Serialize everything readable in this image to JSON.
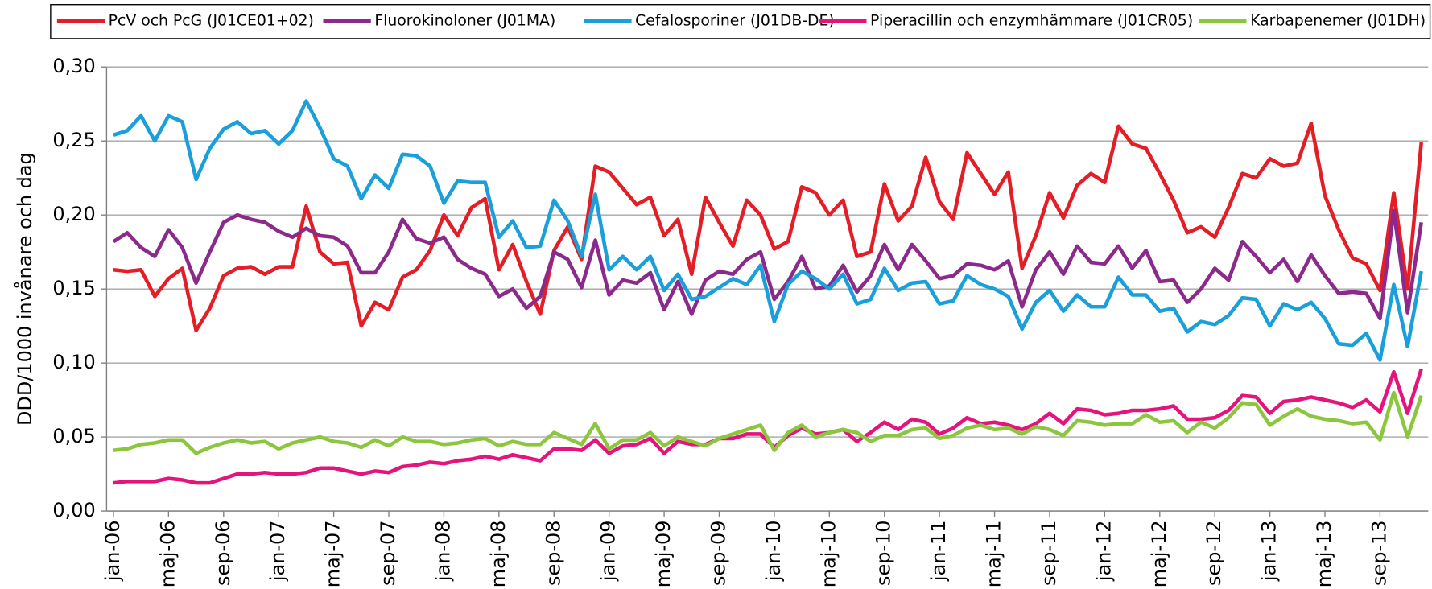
{
  "chart_data": {
    "type": "line",
    "y_label": "DDD/1000 invånare och dag",
    "ylim": [
      0,
      0.3
    ],
    "yticks": [
      {
        "value": 0,
        "label": "0,00"
      },
      {
        "value": 0.05,
        "label": "0,05"
      },
      {
        "value": 0.1,
        "label": "0,10"
      },
      {
        "value": 0.15,
        "label": "0,15"
      },
      {
        "value": 0.2,
        "label": "0,20"
      },
      {
        "value": 0.25,
        "label": "0,25"
      },
      {
        "value": 0.3,
        "label": "0,30"
      }
    ],
    "grid": true,
    "legend": "top",
    "categories": [
      "jan-06",
      null,
      null,
      null,
      "maj-06",
      null,
      null,
      null,
      "sep-06",
      null,
      null,
      null,
      "jan-07",
      null,
      null,
      null,
      "maj-07",
      null,
      null,
      null,
      "sep-07",
      null,
      null,
      null,
      "jan-08",
      null,
      null,
      null,
      "maj-08",
      null,
      null,
      null,
      "sep-08",
      null,
      null,
      null,
      "jan-09",
      null,
      null,
      null,
      "maj-09",
      null,
      null,
      null,
      "sep-09",
      null,
      null,
      null,
      "jan-10",
      null,
      null,
      null,
      "maj-10",
      null,
      null,
      null,
      "sep-10",
      null,
      null,
      null,
      "jan-11",
      null,
      null,
      null,
      "maj-11",
      null,
      null,
      null,
      "sep-11",
      null,
      null,
      null,
      "jan-12",
      null,
      null,
      null,
      "maj-12",
      null,
      null,
      null,
      "sep-12",
      null,
      null,
      null,
      "jan-13",
      null,
      null,
      null,
      "maj-13",
      null,
      null,
      null,
      "sep-13",
      null,
      null,
      null
    ],
    "series": [
      {
        "name": "PcV och PcG (J01CE01+02)",
        "color": "#e41e26",
        "values": [
          0.163,
          0.162,
          0.163,
          0.145,
          0.157,
          0.164,
          0.122,
          0.137,
          0.159,
          0.164,
          0.165,
          0.16,
          0.165,
          0.165,
          0.206,
          0.175,
          0.167,
          0.168,
          0.125,
          0.141,
          0.136,
          0.158,
          0.163,
          0.176,
          0.2,
          0.186,
          0.205,
          0.211,
          0.163,
          0.18,
          0.155,
          0.133,
          0.176,
          0.192,
          0.17,
          0.233,
          0.229,
          0.218,
          0.207,
          0.212,
          0.186,
          0.197,
          0.16,
          0.212,
          0.195,
          0.179,
          0.21,
          0.2,
          0.177,
          0.182,
          0.219,
          0.215,
          0.2,
          0.21,
          0.172,
          0.175,
          0.221,
          0.196,
          0.206,
          0.239,
          0.209,
          0.197,
          0.242,
          0.228,
          0.214,
          0.229,
          0.164,
          0.186,
          0.215,
          0.198,
          0.22,
          0.228,
          0.222,
          0.26,
          0.248,
          0.245,
          0.228,
          0.21,
          0.188,
          0.192,
          0.185,
          0.205,
          0.228,
          0.225,
          0.238,
          0.233,
          0.235,
          0.262,
          0.213,
          0.19,
          0.171,
          0.167,
          0.149,
          0.215,
          0.15,
          0.249
        ]
      },
      {
        "name": "Fluorokinoloner (J01MA)",
        "color": "#8b2a8b",
        "values": [
          0.182,
          0.188,
          0.178,
          0.172,
          0.19,
          0.178,
          0.154,
          0.175,
          0.195,
          0.2,
          0.197,
          0.195,
          0.189,
          0.185,
          0.191,
          0.186,
          0.185,
          0.179,
          0.161,
          0.161,
          0.175,
          0.197,
          0.184,
          0.181,
          0.185,
          0.17,
          0.164,
          0.16,
          0.145,
          0.15,
          0.137,
          0.145,
          0.175,
          0.17,
          0.151,
          0.183,
          0.146,
          0.156,
          0.154,
          0.161,
          0.136,
          0.155,
          0.133,
          0.156,
          0.162,
          0.16,
          0.17,
          0.175,
          0.143,
          0.155,
          0.172,
          0.15,
          0.152,
          0.166,
          0.148,
          0.159,
          0.18,
          0.163,
          0.18,
          0.169,
          0.157,
          0.159,
          0.167,
          0.166,
          0.163,
          0.169,
          0.138,
          0.163,
          0.175,
          0.16,
          0.179,
          0.168,
          0.167,
          0.179,
          0.164,
          0.176,
          0.155,
          0.156,
          0.141,
          0.15,
          0.164,
          0.156,
          0.182,
          0.172,
          0.161,
          0.17,
          0.155,
          0.173,
          0.159,
          0.147,
          0.148,
          0.147,
          0.13,
          0.203,
          0.134,
          0.195
        ]
      },
      {
        "name": "Cefalosporiner (J01DB-DE)",
        "color": "#1a9fdb",
        "values": [
          0.254,
          0.257,
          0.267,
          0.25,
          0.267,
          0.263,
          0.224,
          0.245,
          0.258,
          0.263,
          0.255,
          0.257,
          0.248,
          0.257,
          0.277,
          0.259,
          0.238,
          0.233,
          0.211,
          0.227,
          0.218,
          0.241,
          0.24,
          0.233,
          0.208,
          0.223,
          0.222,
          0.222,
          0.185,
          0.196,
          0.178,
          0.179,
          0.21,
          0.196,
          0.172,
          0.214,
          0.163,
          0.172,
          0.163,
          0.172,
          0.149,
          0.16,
          0.143,
          0.145,
          0.151,
          0.157,
          0.153,
          0.166,
          0.128,
          0.153,
          0.162,
          0.157,
          0.15,
          0.16,
          0.14,
          0.143,
          0.164,
          0.149,
          0.154,
          0.155,
          0.14,
          0.142,
          0.159,
          0.153,
          0.15,
          0.145,
          0.123,
          0.141,
          0.149,
          0.135,
          0.146,
          0.138,
          0.138,
          0.158,
          0.146,
          0.146,
          0.135,
          0.137,
          0.121,
          0.128,
          0.126,
          0.132,
          0.144,
          0.143,
          0.125,
          0.14,
          0.136,
          0.141,
          0.13,
          0.113,
          0.112,
          0.12,
          0.102,
          0.153,
          0.111,
          0.162
        ]
      },
      {
        "name": "Piperacillin och enzymhämmare (J01CR05)",
        "color": "#e5147c",
        "values": [
          0.019,
          0.02,
          0.02,
          0.02,
          0.022,
          0.021,
          0.019,
          0.019,
          0.022,
          0.025,
          0.025,
          0.026,
          0.025,
          0.025,
          0.026,
          0.029,
          0.029,
          0.027,
          0.025,
          0.027,
          0.026,
          0.03,
          0.031,
          0.033,
          0.032,
          0.034,
          0.035,
          0.037,
          0.035,
          0.038,
          0.036,
          0.034,
          0.042,
          0.042,
          0.041,
          0.048,
          0.039,
          0.044,
          0.045,
          0.049,
          0.039,
          0.047,
          0.045,
          0.045,
          0.049,
          0.049,
          0.052,
          0.052,
          0.043,
          0.051,
          0.056,
          0.052,
          0.053,
          0.055,
          0.047,
          0.053,
          0.06,
          0.055,
          0.062,
          0.06,
          0.052,
          0.056,
          0.063,
          0.059,
          0.06,
          0.058,
          0.055,
          0.059,
          0.066,
          0.059,
          0.069,
          0.068,
          0.065,
          0.066,
          0.068,
          0.068,
          0.069,
          0.071,
          0.062,
          0.062,
          0.063,
          0.068,
          0.078,
          0.077,
          0.066,
          0.074,
          0.075,
          0.077,
          0.075,
          0.073,
          0.07,
          0.075,
          0.067,
          0.094,
          0.066,
          0.096
        ]
      },
      {
        "name": "Karbapenemer (J01DH)",
        "color": "#8cc63f",
        "values": [
          0.041,
          0.042,
          0.045,
          0.046,
          0.048,
          0.048,
          0.039,
          0.043,
          0.046,
          0.048,
          0.046,
          0.047,
          0.042,
          0.046,
          0.048,
          0.05,
          0.047,
          0.046,
          0.043,
          0.048,
          0.044,
          0.05,
          0.047,
          0.047,
          0.045,
          0.046,
          0.048,
          0.049,
          0.044,
          0.047,
          0.045,
          0.045,
          0.053,
          0.049,
          0.045,
          0.059,
          0.042,
          0.048,
          0.048,
          0.053,
          0.044,
          0.05,
          0.047,
          0.044,
          0.049,
          0.052,
          0.055,
          0.058,
          0.041,
          0.053,
          0.058,
          0.05,
          0.053,
          0.055,
          0.053,
          0.047,
          0.051,
          0.051,
          0.055,
          0.056,
          0.049,
          0.051,
          0.056,
          0.058,
          0.055,
          0.056,
          0.052,
          0.057,
          0.055,
          0.051,
          0.061,
          0.06,
          0.058,
          0.059,
          0.059,
          0.065,
          0.06,
          0.061,
          0.053,
          0.06,
          0.056,
          0.063,
          0.073,
          0.072,
          0.058,
          0.064,
          0.069,
          0.064,
          0.062,
          0.061,
          0.059,
          0.06,
          0.048,
          0.08,
          0.05,
          0.078
        ]
      }
    ]
  }
}
